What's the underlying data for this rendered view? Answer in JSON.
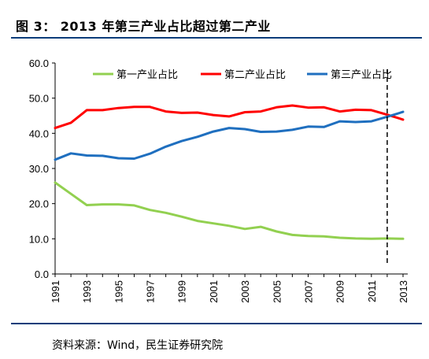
{
  "title": "图 3： 2013 年第三产业占比超过第二产业",
  "source": "资料来源：Wind，民生证券研究院",
  "chart_data": {
    "type": "line",
    "x": [
      1991,
      1992,
      1993,
      1994,
      1995,
      1996,
      1997,
      1998,
      1999,
      2000,
      2001,
      2002,
      2003,
      2004,
      2005,
      2006,
      2007,
      2008,
      2009,
      2010,
      2011,
      2012,
      2013
    ],
    "x_tick_labels": [
      "1991",
      "1993",
      "1995",
      "1997",
      "1999",
      "2001",
      "2003",
      "2005",
      "2007",
      "2009",
      "2011",
      "2013"
    ],
    "y_tick_labels": [
      "0.0",
      "10.0",
      "20.0",
      "30.0",
      "40.0",
      "50.0",
      "60.0"
    ],
    "ylim": [
      0,
      60
    ],
    "legend_position": "top",
    "series": [
      {
        "name": "第一产业占比",
        "color": "#92d050",
        "values": [
          26.0,
          22.8,
          19.6,
          19.8,
          19.8,
          19.5,
          18.2,
          17.4,
          16.3,
          15.1,
          14.4,
          13.7,
          12.8,
          13.4,
          12.1,
          11.1,
          10.8,
          10.7,
          10.3,
          10.1,
          10.0,
          10.1,
          10.0
        ]
      },
      {
        "name": "第二产业占比",
        "color": "#ff0000",
        "values": [
          41.5,
          43.0,
          46.6,
          46.6,
          47.2,
          47.5,
          47.5,
          46.2,
          45.8,
          45.9,
          45.2,
          44.8,
          46.0,
          46.2,
          47.4,
          47.9,
          47.3,
          47.4,
          46.2,
          46.7,
          46.6,
          45.3,
          43.9
        ]
      },
      {
        "name": "第三产业占比",
        "color": "#1f6fbf",
        "values": [
          32.5,
          34.3,
          33.7,
          33.6,
          32.9,
          32.8,
          34.2,
          36.2,
          37.8,
          39.0,
          40.5,
          41.5,
          41.2,
          40.4,
          40.5,
          41.0,
          41.9,
          41.8,
          43.4,
          43.2,
          43.4,
          44.7,
          46.1
        ]
      }
    ],
    "reference_line": {
      "x": 2012,
      "style": "dashed"
    },
    "grid": false
  }
}
